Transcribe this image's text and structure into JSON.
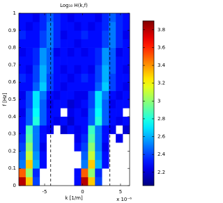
{
  "chart_data": {
    "type": "heatmap",
    "title": "Log₁₀ H(k,f)",
    "xlabel": "k [1/m]",
    "ylabel": "f [Hz]",
    "x_scale_label": "x 10⁻⁶",
    "xlim": [
      -8.4,
      6.2
    ],
    "ylim": [
      0,
      1
    ],
    "xticks": [
      -5,
      0,
      5
    ],
    "yticks": [
      0,
      0.1,
      0.2,
      0.3,
      0.4,
      0.5,
      0.6,
      0.7,
      0.8,
      0.9,
      1
    ],
    "xbins": [
      -8.4,
      -7.4875,
      -6.575,
      -5.6625,
      -4.75,
      -3.8375,
      -2.925,
      -2.0125,
      -1.1,
      -0.1875,
      0.725,
      1.6375,
      2.55,
      3.4625,
      4.375,
      5.2875,
      6.2
    ],
    "ybins": [
      0,
      0.05,
      0.1,
      0.15,
      0.2,
      0.25,
      0.3,
      0.35,
      0.4,
      0.45,
      0.5,
      0.55,
      0.6,
      0.65,
      0.7,
      0.75,
      0.8,
      0.85,
      0.9,
      0.95,
      1
    ],
    "z": [
      [
        3.8,
        3.3,
        2.4,
        null,
        null,
        null,
        null,
        null,
        2.3,
        3.8,
        3.3,
        2.4,
        null,
        null,
        null,
        null
      ],
      [
        3.5,
        3.0,
        2.35,
        null,
        null,
        null,
        null,
        null,
        2.3,
        3.5,
        3.0,
        2.35,
        null,
        null,
        null,
        null
      ],
      [
        2.5,
        3.3,
        2.6,
        2.3,
        null,
        null,
        null,
        null,
        null,
        2.5,
        3.3,
        2.6,
        2.3,
        null,
        null,
        null
      ],
      [
        2.45,
        3.1,
        2.55,
        2.3,
        null,
        null,
        null,
        null,
        null,
        2.45,
        3.1,
        2.55,
        2.3,
        null,
        null,
        null
      ],
      [
        2.4,
        3.0,
        2.5,
        2.25,
        null,
        null,
        null,
        null,
        2.3,
        2.4,
        3.0,
        2.5,
        2.25,
        null,
        null,
        null
      ],
      [
        2.35,
        2.9,
        2.5,
        2.3,
        null,
        null,
        null,
        null,
        2.25,
        2.35,
        2.9,
        2.5,
        2.3,
        null,
        2.25,
        null
      ],
      [
        2.3,
        2.85,
        2.5,
        2.3,
        2.25,
        null,
        2.2,
        2.3,
        2.25,
        2.3,
        2.85,
        2.5,
        2.3,
        2.25,
        null,
        2.2
      ],
      [
        2.3,
        2.45,
        2.8,
        2.45,
        2.3,
        2.25,
        2.3,
        2.2,
        2.3,
        2.3,
        2.45,
        2.8,
        2.45,
        2.3,
        2.25,
        2.3
      ],
      [
        2.25,
        2.45,
        2.75,
        2.45,
        2.3,
        2.3,
        null,
        2.25,
        2.3,
        2.25,
        2.45,
        2.75,
        2.45,
        2.3,
        2.3,
        null
      ],
      [
        2.3,
        2.4,
        2.7,
        2.45,
        2.25,
        2.3,
        2.3,
        2.2,
        2.25,
        2.3,
        2.4,
        2.7,
        2.45,
        2.25,
        2.3,
        2.3
      ],
      [
        2.25,
        2.4,
        2.7,
        2.5,
        2.3,
        2.25,
        2.3,
        2.3,
        2.25,
        2.25,
        2.4,
        2.7,
        2.5,
        2.3,
        2.25,
        2.3
      ],
      [
        2.3,
        2.3,
        2.45,
        2.65,
        2.4,
        2.3,
        2.25,
        2.3,
        2.3,
        2.3,
        2.3,
        2.45,
        2.65,
        2.4,
        2.3,
        2.25
      ],
      [
        2.35,
        2.3,
        2.4,
        2.6,
        2.4,
        2.3,
        2.3,
        2.25,
        2.3,
        2.35,
        2.3,
        2.4,
        2.6,
        2.4,
        2.3,
        2.3
      ],
      [
        2.3,
        2.25,
        2.4,
        2.6,
        2.45,
        2.3,
        2.25,
        2.3,
        2.25,
        2.3,
        2.25,
        2.4,
        2.6,
        2.45,
        2.3,
        2.25
      ],
      [
        2.3,
        2.3,
        2.35,
        2.55,
        2.45,
        2.3,
        2.3,
        2.3,
        2.3,
        2.3,
        2.3,
        2.35,
        2.55,
        2.45,
        2.3,
        2.3
      ],
      [
        2.25,
        2.3,
        2.35,
        2.55,
        2.45,
        2.25,
        2.3,
        2.25,
        2.3,
        2.25,
        2.3,
        2.35,
        2.55,
        2.45,
        2.25,
        2.3
      ],
      [
        2.3,
        2.3,
        2.3,
        2.4,
        2.5,
        2.35,
        2.3,
        2.3,
        2.25,
        2.3,
        2.3,
        2.3,
        2.4,
        2.5,
        2.35,
        2.3
      ],
      [
        2.35,
        2.3,
        2.3,
        2.4,
        2.5,
        2.35,
        2.25,
        2.3,
        2.3,
        2.35,
        2.3,
        2.3,
        2.4,
        2.5,
        2.35,
        2.25
      ],
      [
        2.3,
        2.25,
        2.3,
        2.35,
        2.5,
        2.35,
        2.3,
        2.3,
        2.25,
        2.3,
        2.25,
        2.3,
        2.35,
        2.5,
        2.35,
        2.3
      ],
      [
        2.3,
        2.3,
        2.25,
        2.35,
        2.45,
        2.35,
        2.3,
        2.25,
        2.3,
        2.3,
        2.3,
        2.25,
        2.35,
        2.45,
        2.35,
        2.3
      ]
    ],
    "colormap": "jet",
    "clim": [
      2.05,
      3.9
    ],
    "colorbar_ticks": [
      2.2,
      2.4,
      2.6,
      2.8,
      3,
      3.2,
      3.4,
      3.6,
      3.8
    ],
    "vlines": [
      -4.2,
      3.6
    ]
  }
}
